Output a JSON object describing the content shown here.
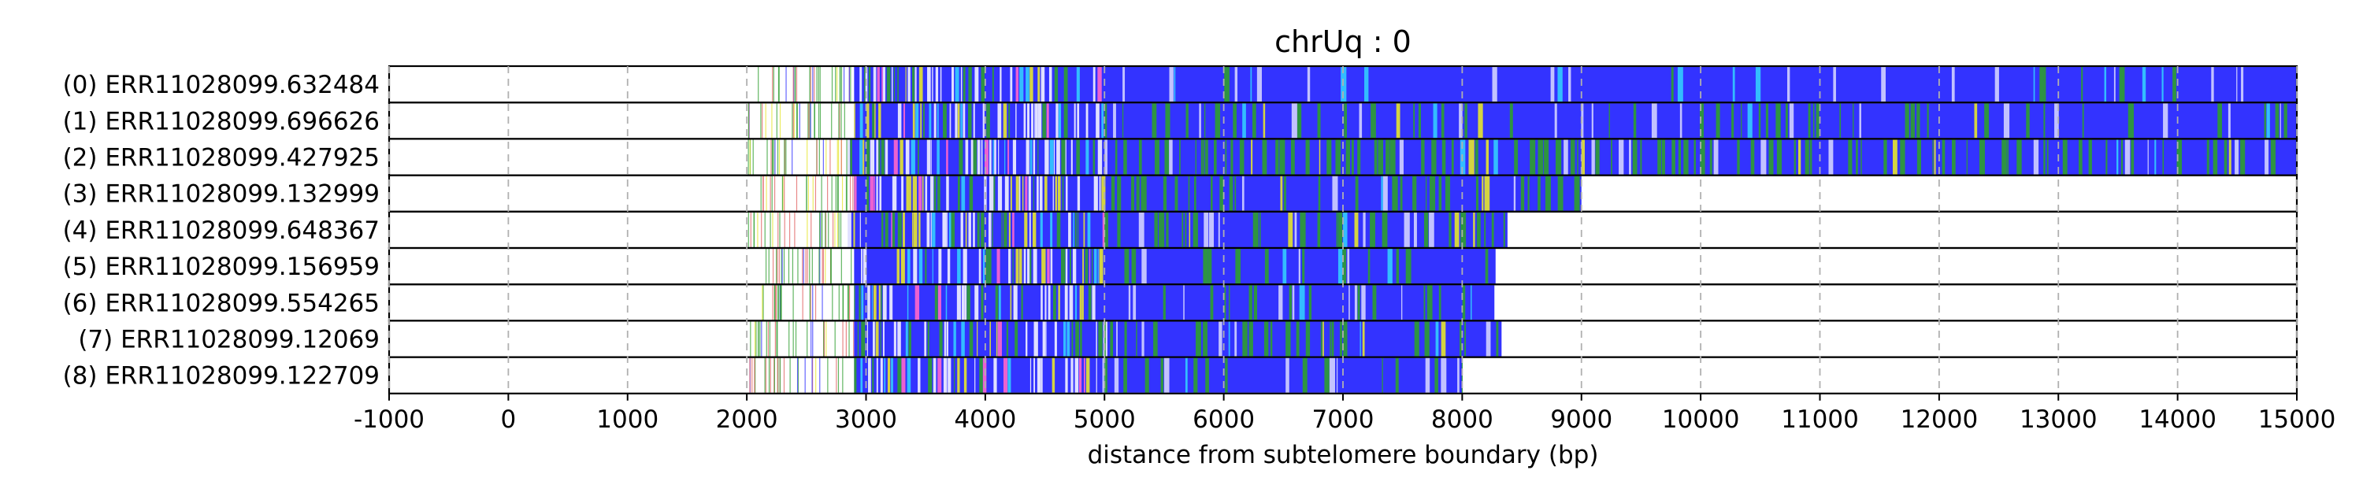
{
  "chart_data": {
    "type": "heatmap",
    "title": "chrUq : 0",
    "xlabel": "distance from subtelomere boundary (bp)",
    "ylabel": "",
    "xlim": [
      -1000,
      15000
    ],
    "xticks": [
      -1000,
      0,
      1000,
      2000,
      3000,
      4000,
      5000,
      6000,
      7000,
      8000,
      9000,
      10000,
      11000,
      12000,
      13000,
      14000,
      15000
    ],
    "xtick_labels": [
      "-1000",
      "0",
      "1000",
      "2000",
      "3000",
      "4000",
      "5000",
      "6000",
      "7000",
      "8000",
      "9000",
      "10000",
      "11000",
      "12000",
      "13000",
      "14000",
      "15000"
    ],
    "grid": "vertical dashed",
    "colors": {
      "blue": "#3333ff",
      "green": "#2e9e2e",
      "yellow": "#e6e62e",
      "cyan": "#33ccff",
      "white": "#ffffff",
      "red": "#e06060",
      "pink": "#ff66cc"
    },
    "reads": [
      {
        "label": "(0) ERR11028099.632484",
        "scatter_start": 2000,
        "dense_start": 2900,
        "end": 15000,
        "green_density": 0.05
      },
      {
        "label": "(1) ERR11028099.696626",
        "scatter_start": 2000,
        "dense_start": 2900,
        "end": 15000,
        "green_density": 0.35
      },
      {
        "label": "(2) ERR11028099.427925",
        "scatter_start": 2000,
        "dense_start": 2850,
        "end": 15000,
        "green_density": 0.55
      },
      {
        "label": "(3) ERR11028099.132999",
        "scatter_start": 2100,
        "dense_start": 2900,
        "end": 9000,
        "green_density": 0.4
      },
      {
        "label": "(4) ERR11028099.648367",
        "scatter_start": 2000,
        "dense_start": 2850,
        "end": 8380,
        "green_density": 0.4
      },
      {
        "label": "(5) ERR11028099.156959",
        "scatter_start": 2150,
        "dense_start": 2900,
        "end": 8280,
        "green_density": 0.3
      },
      {
        "label": "(6) ERR11028099.554265",
        "scatter_start": 2100,
        "dense_start": 2900,
        "end": 8270,
        "green_density": 0.25
      },
      {
        "label": "(7) ERR11028099.12069",
        "scatter_start": 2000,
        "dense_start": 2900,
        "end": 8330,
        "green_density": 0.45
      },
      {
        "label": "(8) ERR11028099.122709",
        "scatter_start": 2000,
        "dense_start": 2900,
        "end": 8000,
        "green_density": 0.2
      }
    ]
  }
}
